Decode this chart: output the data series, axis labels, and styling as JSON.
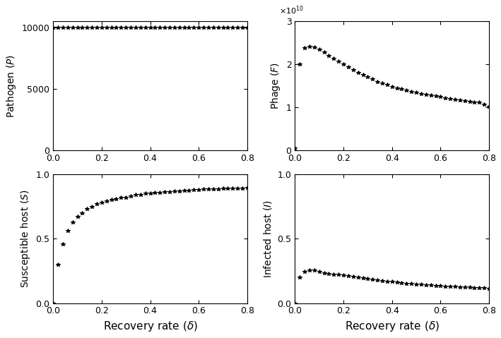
{
  "delta_values": [
    0.0,
    0.02,
    0.04,
    0.06,
    0.08,
    0.1,
    0.12,
    0.14,
    0.16,
    0.18,
    0.2,
    0.22,
    0.24,
    0.26,
    0.28,
    0.3,
    0.32,
    0.34,
    0.36,
    0.38,
    0.4,
    0.42,
    0.44,
    0.46,
    0.48,
    0.5,
    0.52,
    0.54,
    0.56,
    0.58,
    0.6,
    0.62,
    0.64,
    0.66,
    0.68,
    0.7,
    0.72,
    0.74,
    0.76,
    0.78,
    0.8
  ],
  "P_values": [
    9999,
    10000,
    10000,
    10000,
    10000,
    10000,
    10000,
    10000,
    10000,
    10000,
    10000,
    10000,
    10000,
    10000,
    10000,
    10000,
    10000,
    10000,
    10000,
    10000,
    10000,
    10000,
    10000,
    10000,
    10000,
    10000,
    10000,
    10000,
    10000,
    10000,
    10000,
    10000,
    10000,
    10000,
    10000,
    10000,
    10000,
    10000,
    10000,
    10000,
    10000
  ],
  "F_values": [
    500000000.0,
    20000000000.0,
    23800000000.0,
    24200000000.0,
    24000000000.0,
    23500000000.0,
    22800000000.0,
    22000000000.0,
    21300000000.0,
    20600000000.0,
    20000000000.0,
    19300000000.0,
    18700000000.0,
    18100000000.0,
    17500000000.0,
    17000000000.0,
    16500000000.0,
    16000000000.0,
    15600000000.0,
    15200000000.0,
    14800000000.0,
    14500000000.0,
    14200000000.0,
    13900000000.0,
    13600000000.0,
    13400000000.0,
    13200000000.0,
    13000000000.0,
    12800000000.0,
    12600000000.0,
    12400000000.0,
    12200000000.0,
    12000000000.0,
    11800000000.0,
    11600000000.0,
    11500000000.0,
    11300000000.0,
    11200000000.0,
    11100000000.0,
    10600000000.0,
    10200000000.0
  ],
  "S_values": [
    0.0,
    0.3,
    0.46,
    0.56,
    0.63,
    0.67,
    0.7,
    0.73,
    0.75,
    0.77,
    0.78,
    0.79,
    0.8,
    0.81,
    0.82,
    0.82,
    0.83,
    0.84,
    0.84,
    0.85,
    0.85,
    0.855,
    0.86,
    0.862,
    0.864,
    0.866,
    0.87,
    0.873,
    0.875,
    0.878,
    0.88,
    0.882,
    0.884,
    0.886,
    0.887,
    0.888,
    0.889,
    0.89,
    0.891,
    0.892,
    0.893
  ],
  "I_values": [
    0.0,
    0.2,
    0.245,
    0.255,
    0.255,
    0.245,
    0.235,
    0.23,
    0.225,
    0.22,
    0.215,
    0.21,
    0.205,
    0.2,
    0.195,
    0.19,
    0.185,
    0.18,
    0.175,
    0.17,
    0.165,
    0.16,
    0.157,
    0.153,
    0.15,
    0.148,
    0.145,
    0.142,
    0.14,
    0.137,
    0.135,
    0.132,
    0.13,
    0.128,
    0.126,
    0.124,
    0.122,
    0.12,
    0.118,
    0.116,
    0.114
  ],
  "xlabel": "Recovery rate ($\\delta$)",
  "ylabel_P": "Pathogen ($P$)",
  "ylabel_F": "Phage ($F$)",
  "ylabel_S": "Susceptible host ($S$)",
  "ylabel_I": "Infected host ($I$)",
  "marker": "*",
  "markersize": 4,
  "color": "black",
  "P_ylim": [
    0,
    10500
  ],
  "P_yticks": [
    0,
    5000,
    10000
  ],
  "F_ylim": [
    0,
    30000000000.0
  ],
  "F_yticks": [
    0,
    10000000000.0,
    20000000000.0,
    30000000000.0
  ],
  "S_ylim": [
    0,
    1.0
  ],
  "S_yticks": [
    0,
    0.5,
    1.0
  ],
  "I_ylim": [
    0,
    1.0
  ],
  "I_yticks": [
    0,
    0.5,
    1.0
  ],
  "xlim": [
    0,
    0.8
  ],
  "xticks": [
    0,
    0.2,
    0.4,
    0.6,
    0.8
  ]
}
